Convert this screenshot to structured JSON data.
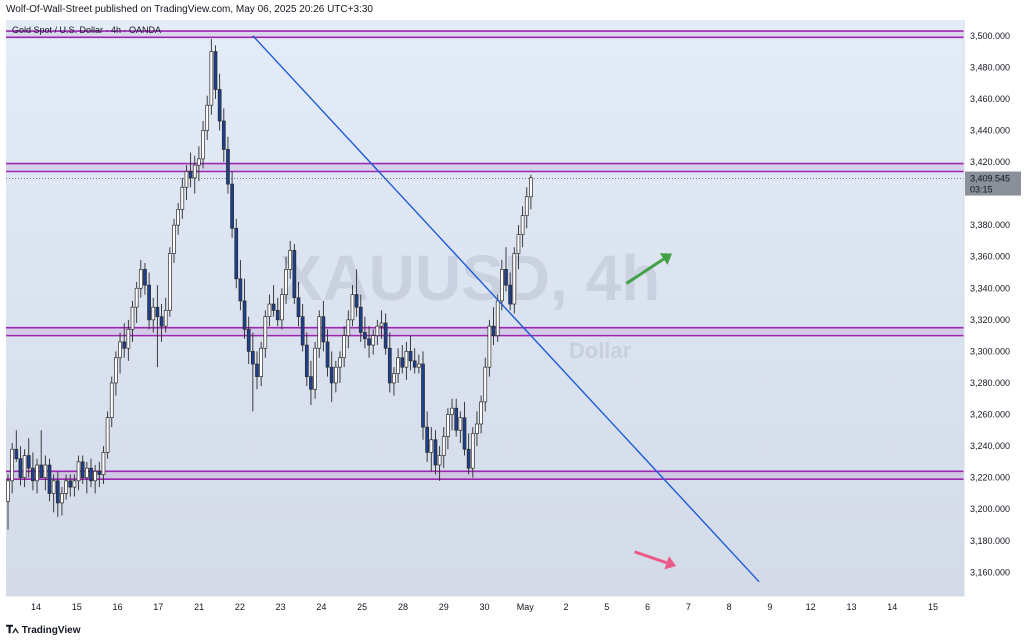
{
  "caption": "Wolf-Of-Wall-Street published on TradingView.com, May 06, 2025 20:26 UTC+3:30",
  "symbol_title": "Gold Spot / U.S. Dollar · 4h · OANDA",
  "brand": "TradingView",
  "brand_icon": "tradingview-logo-icon",
  "chart_data": {
    "type": "candlestick",
    "watermark": {
      "symbol": "XAUUSD, 4h",
      "sub": "Dollar"
    },
    "ylim": [
      3145,
      3510
    ],
    "y_ticks": [
      3160,
      3180,
      3200,
      3220,
      3240,
      3260,
      3280,
      3300,
      3320,
      3340,
      3360,
      3380,
      3420,
      3440,
      3460,
      3480,
      3500
    ],
    "y_tick_labels": [
      "3,160.000",
      "3,180.000",
      "3,200.000",
      "3,220.000",
      "3,240.000",
      "3,260.000",
      "3,280.000",
      "3,300.000",
      "3,320.000",
      "3,340.000",
      "3,360.000",
      "3,380.000",
      "3,420.000",
      "3,440.000",
      "3,460.000",
      "3,480.000",
      "3,500.000"
    ],
    "x_ticks": [
      "14",
      "15",
      "16",
      "17",
      "21",
      "22",
      "23",
      "24",
      "25",
      "28",
      "29",
      "30",
      "May",
      "2",
      "5",
      "6",
      "7",
      "8",
      "9",
      "12",
      "13",
      "14",
      "15"
    ],
    "last_price": 3409.545,
    "last_price_label": "3,409.545",
    "countdown": "03:15",
    "colors": {
      "background_top": "#e4ecf8",
      "background_bottom": "#d3dae8",
      "bull_fill": "#ffffff",
      "bear_fill": "#1d3f8f",
      "candle_outline": "#2b2b2b",
      "zone_line": "#9c27b0",
      "trendline": "#1e5bd6",
      "up_arrow": "#43a047",
      "down_arrow": "#ec5a8a"
    },
    "zones": [
      {
        "low": 3499,
        "high": 3503
      },
      {
        "low": 3414,
        "high": 3419
      },
      {
        "low": 3310,
        "high": 3315
      },
      {
        "low": 3219,
        "high": 3224
      }
    ],
    "trendline": {
      "start": {
        "bar": 59,
        "price": 3500
      },
      "end": {
        "bar": 181,
        "price": 3154
      }
    },
    "arrows": [
      {
        "kind": "up",
        "from": {
          "bar": 149,
          "price": 3343
        },
        "to": {
          "bar": 160,
          "price": 3362
        }
      },
      {
        "kind": "down",
        "from": {
          "bar": 151,
          "price": 3173
        },
        "to": {
          "bar": 161,
          "price": 3164
        }
      }
    ],
    "candles": [
      [
        3205,
        3222,
        3187,
        3218
      ],
      [
        3218,
        3242,
        3210,
        3238
      ],
      [
        3238,
        3250,
        3230,
        3232
      ],
      [
        3232,
        3240,
        3215,
        3220
      ],
      [
        3220,
        3238,
        3214,
        3234
      ],
      [
        3234,
        3245,
        3220,
        3226
      ],
      [
        3226,
        3236,
        3212,
        3218
      ],
      [
        3218,
        3232,
        3210,
        3228
      ],
      [
        3228,
        3250,
        3220,
        3220
      ],
      [
        3220,
        3234,
        3212,
        3228
      ],
      [
        3228,
        3232,
        3205,
        3210
      ],
      [
        3210,
        3222,
        3198,
        3218
      ],
      [
        3218,
        3224,
        3195,
        3204
      ],
      [
        3204,
        3214,
        3196,
        3210
      ],
      [
        3210,
        3222,
        3206,
        3218
      ],
      [
        3218,
        3222,
        3208,
        3214
      ],
      [
        3214,
        3222,
        3208,
        3218
      ],
      [
        3218,
        3234,
        3212,
        3230
      ],
      [
        3230,
        3234,
        3216,
        3220
      ],
      [
        3220,
        3230,
        3210,
        3226
      ],
      [
        3226,
        3232,
        3214,
        3218
      ],
      [
        3218,
        3228,
        3210,
        3224
      ],
      [
        3224,
        3230,
        3214,
        3222
      ],
      [
        3222,
        3240,
        3216,
        3236
      ],
      [
        3236,
        3262,
        3232,
        3258
      ],
      [
        3258,
        3284,
        3252,
        3280
      ],
      [
        3280,
        3300,
        3272,
        3296
      ],
      [
        3296,
        3312,
        3286,
        3306
      ],
      [
        3306,
        3318,
        3296,
        3302
      ],
      [
        3302,
        3320,
        3294,
        3314
      ],
      [
        3314,
        3332,
        3306,
        3328
      ],
      [
        3328,
        3344,
        3318,
        3340
      ],
      [
        3340,
        3358,
        3334,
        3352
      ],
      [
        3352,
        3356,
        3336,
        3342
      ],
      [
        3342,
        3350,
        3314,
        3320
      ],
      [
        3320,
        3334,
        3312,
        3328
      ],
      [
        3328,
        3342,
        3290,
        3322
      ],
      [
        3322,
        3330,
        3306,
        3316
      ],
      [
        3316,
        3334,
        3312,
        3326
      ],
      [
        3326,
        3366,
        3322,
        3362
      ],
      [
        3362,
        3384,
        3356,
        3380
      ],
      [
        3380,
        3394,
        3374,
        3390
      ],
      [
        3390,
        3410,
        3384,
        3404
      ],
      [
        3404,
        3418,
        3396,
        3414
      ],
      [
        3414,
        3426,
        3404,
        3410
      ],
      [
        3410,
        3424,
        3400,
        3418
      ],
      [
        3418,
        3430,
        3408,
        3422
      ],
      [
        3422,
        3446,
        3416,
        3440
      ],
      [
        3440,
        3462,
        3434,
        3456
      ],
      [
        3456,
        3498,
        3450,
        3490
      ],
      [
        3490,
        3494,
        3460,
        3466
      ],
      [
        3466,
        3476,
        3440,
        3446
      ],
      [
        3446,
        3454,
        3420,
        3428
      ],
      [
        3428,
        3436,
        3400,
        3406
      ],
      [
        3406,
        3414,
        3372,
        3378
      ],
      [
        3378,
        3384,
        3340,
        3346
      ],
      [
        3346,
        3358,
        3326,
        3332
      ],
      [
        3332,
        3346,
        3308,
        3314
      ],
      [
        3314,
        3322,
        3292,
        3300
      ],
      [
        3300,
        3312,
        3262,
        3292
      ],
      [
        3292,
        3300,
        3276,
        3284
      ],
      [
        3284,
        3306,
        3278,
        3302
      ],
      [
        3302,
        3326,
        3296,
        3322
      ],
      [
        3322,
        3336,
        3316,
        3330
      ],
      [
        3330,
        3342,
        3322,
        3326
      ],
      [
        3326,
        3334,
        3316,
        3320
      ],
      [
        3320,
        3340,
        3314,
        3336
      ],
      [
        3336,
        3360,
        3330,
        3352
      ],
      [
        3352,
        3370,
        3346,
        3364
      ],
      [
        3364,
        3368,
        3330,
        3334
      ],
      [
        3334,
        3344,
        3316,
        3322
      ],
      [
        3322,
        3330,
        3300,
        3304
      ],
      [
        3304,
        3312,
        3278,
        3284
      ],
      [
        3284,
        3294,
        3266,
        3276
      ],
      [
        3276,
        3306,
        3270,
        3302
      ],
      [
        3302,
        3326,
        3296,
        3322
      ],
      [
        3322,
        3332,
        3300,
        3306
      ],
      [
        3306,
        3314,
        3284,
        3290
      ],
      [
        3290,
        3300,
        3268,
        3280
      ],
      [
        3280,
        3294,
        3274,
        3290
      ],
      [
        3290,
        3300,
        3280,
        3296
      ],
      [
        3296,
        3316,
        3290,
        3310
      ],
      [
        3310,
        3326,
        3302,
        3320
      ],
      [
        3320,
        3342,
        3316,
        3336
      ],
      [
        3336,
        3352,
        3322,
        3328
      ],
      [
        3328,
        3336,
        3306,
        3312
      ],
      [
        3312,
        3322,
        3302,
        3308
      ],
      [
        3308,
        3316,
        3296,
        3304
      ],
      [
        3304,
        3314,
        3298,
        3310
      ],
      [
        3310,
        3320,
        3304,
        3316
      ],
      [
        3316,
        3326,
        3308,
        3318
      ],
      [
        3318,
        3324,
        3298,
        3302
      ],
      [
        3302,
        3312,
        3274,
        3280
      ],
      [
        3280,
        3290,
        3272,
        3286
      ],
      [
        3286,
        3302,
        3280,
        3296
      ],
      [
        3296,
        3304,
        3286,
        3290
      ],
      [
        3290,
        3306,
        3282,
        3300
      ],
      [
        3300,
        3310,
        3288,
        3294
      ],
      [
        3294,
        3302,
        3286,
        3290
      ],
      [
        3290,
        3298,
        3286,
        3292
      ],
      [
        3292,
        3300,
        3244,
        3252
      ],
      [
        3252,
        3262,
        3230,
        3236
      ],
      [
        3236,
        3252,
        3224,
        3244
      ],
      [
        3244,
        3250,
        3222,
        3228
      ],
      [
        3228,
        3240,
        3218,
        3234
      ],
      [
        3234,
        3252,
        3226,
        3246
      ],
      [
        3246,
        3264,
        3238,
        3260
      ],
      [
        3260,
        3270,
        3250,
        3264
      ],
      [
        3264,
        3270,
        3246,
        3250
      ],
      [
        3250,
        3262,
        3242,
        3258
      ],
      [
        3258,
        3268,
        3234,
        3238
      ],
      [
        3238,
        3248,
        3222,
        3226
      ],
      [
        3226,
        3252,
        3220,
        3248
      ],
      [
        3248,
        3262,
        3240,
        3254
      ],
      [
        3254,
        3272,
        3248,
        3268
      ],
      [
        3268,
        3296,
        3262,
        3290
      ],
      [
        3290,
        3320,
        3284,
        3316
      ],
      [
        3316,
        3328,
        3304,
        3310
      ],
      [
        3310,
        3336,
        3306,
        3332
      ],
      [
        3332,
        3358,
        3326,
        3352
      ],
      [
        3352,
        3366,
        3338,
        3342
      ],
      [
        3342,
        3350,
        3326,
        3330
      ],
      [
        3330,
        3366,
        3324,
        3362
      ],
      [
        3362,
        3380,
        3352,
        3374
      ],
      [
        3374,
        3392,
        3366,
        3386
      ],
      [
        3386,
        3404,
        3378,
        3398
      ],
      [
        3398,
        3412,
        3390,
        3410
      ]
    ]
  }
}
